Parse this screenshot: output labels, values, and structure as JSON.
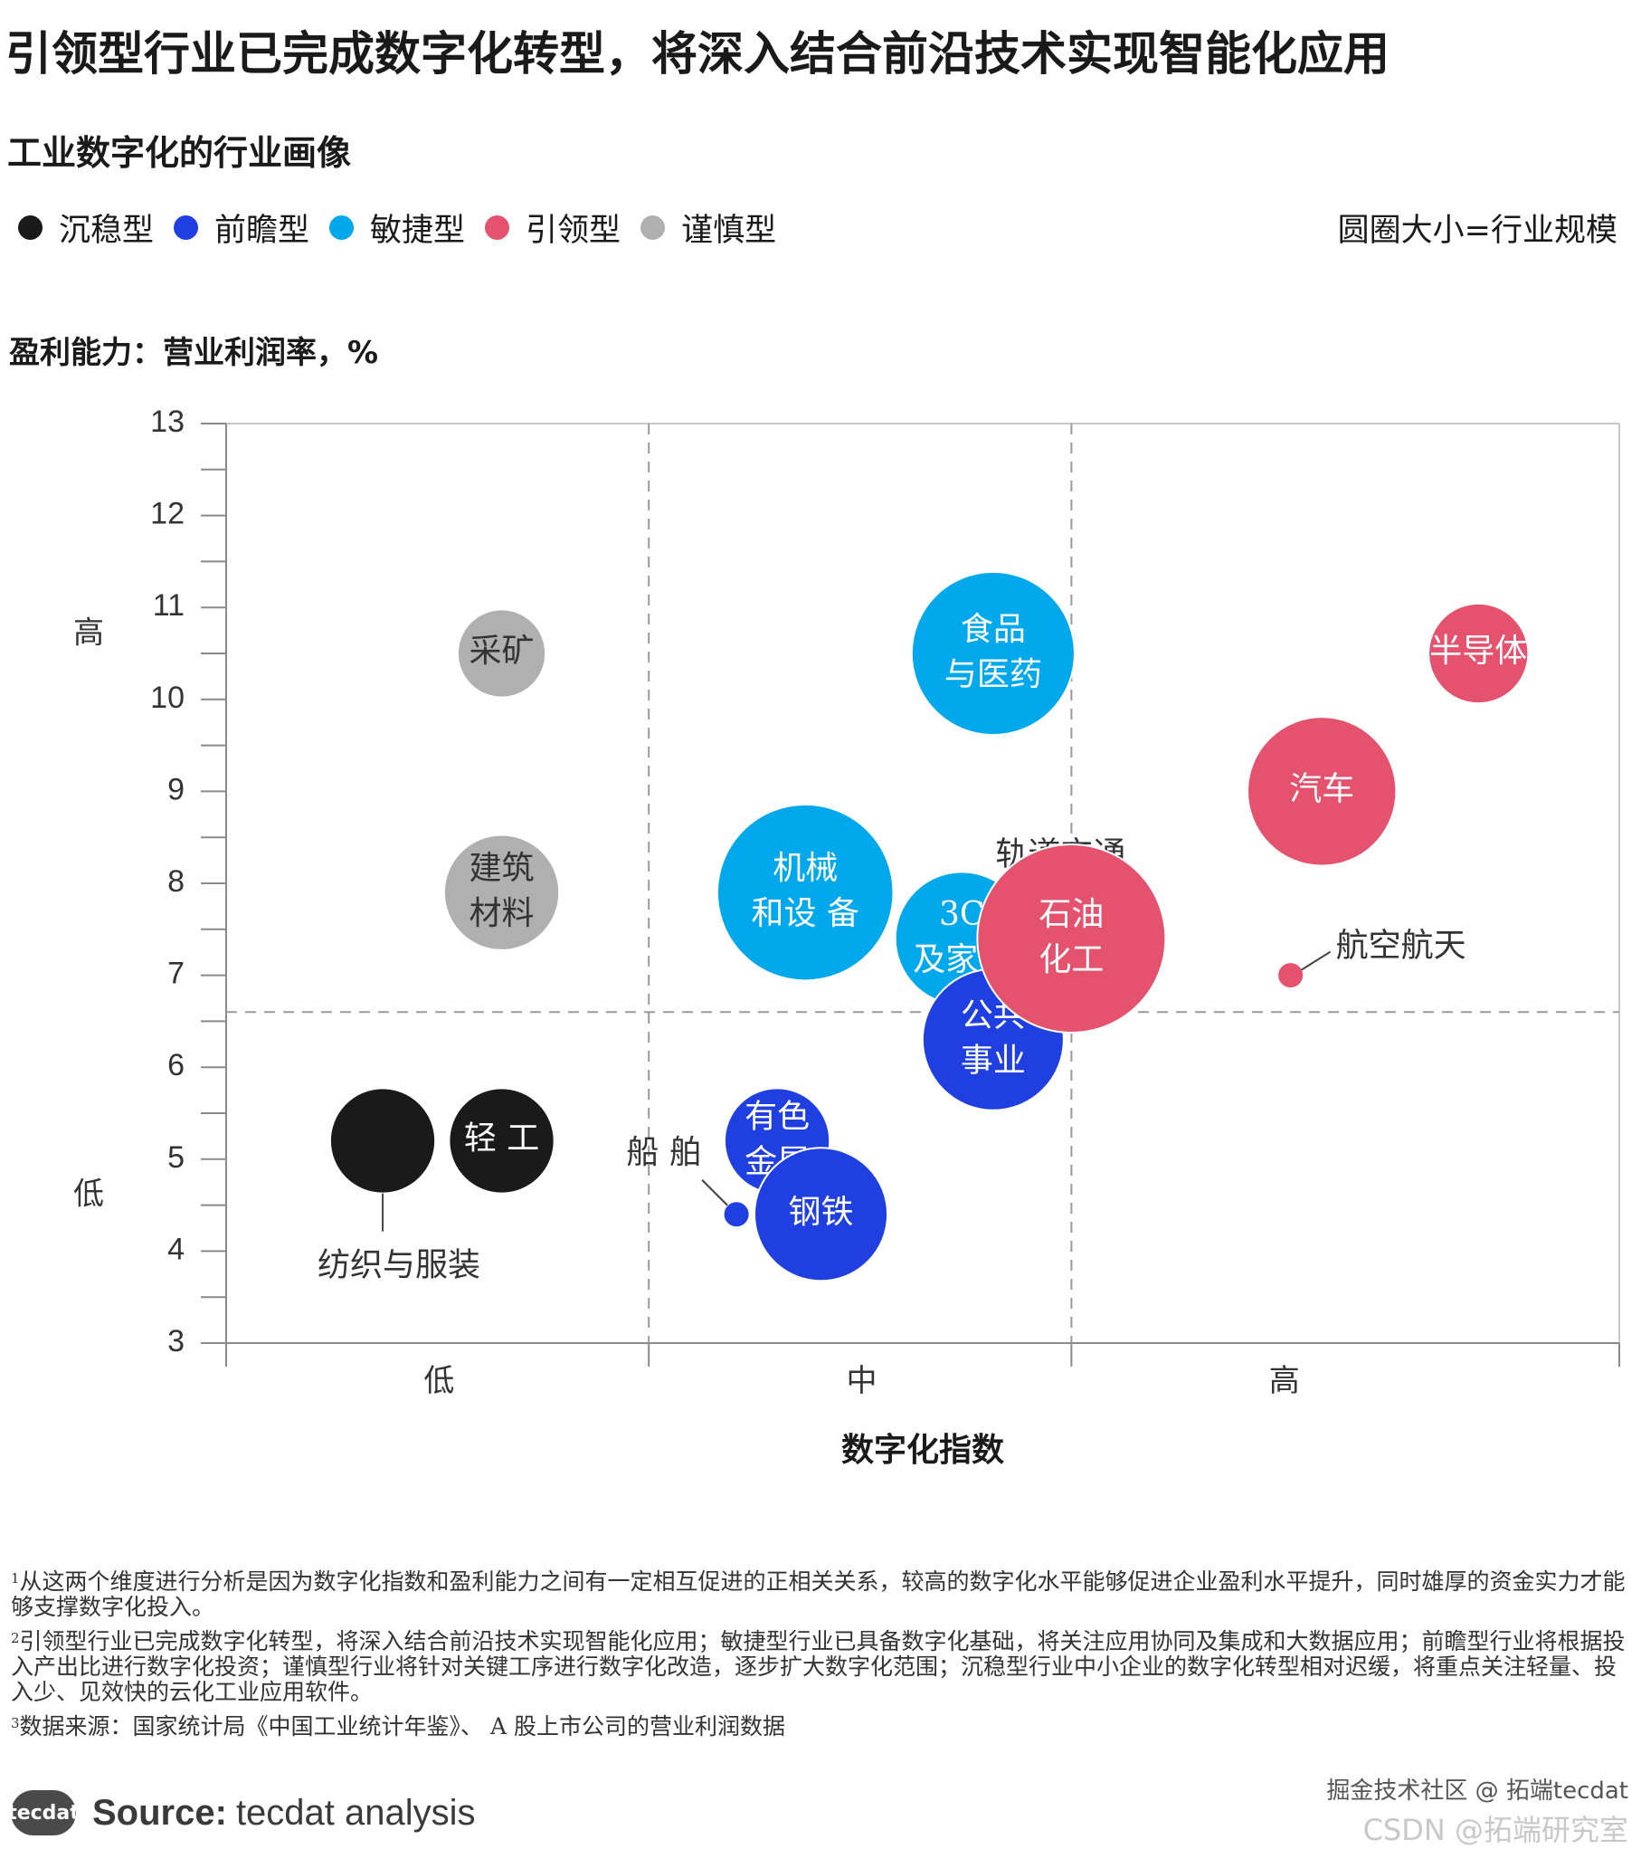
{
  "title": "引领型行业已完成数字化转型，将深入结合前沿技术实现智能化应用",
  "subtitle": "工业数字化的行业画像",
  "legend": [
    {
      "label": "沉稳型",
      "color": "#1a1a1a"
    },
    {
      "label": "前瞻型",
      "color": "#1f3fe0"
    },
    {
      "label": "敏捷型",
      "color": "#02a8ec"
    },
    {
      "label": "引领型",
      "color": "#e5526e"
    },
    {
      "label": "谨慎型",
      "color": "#b0b0b0"
    }
  ],
  "size_note": "圆圈大小=行业规模",
  "y_axis_title": "盈利能力：营业利润率，%",
  "chart_data": {
    "type": "scatter",
    "xlabel": "数字化指数",
    "x_categories": [
      "低",
      "中",
      "高"
    ],
    "y_level_labels": {
      "high": "高",
      "low": "低"
    },
    "ylim": [
      3,
      13
    ],
    "yticks": [
      3,
      4,
      5,
      6,
      7,
      8,
      9,
      10,
      11,
      12,
      13
    ],
    "quadrant_divider_y": 6.6,
    "bubbles": [
      {
        "name": "纺织与服装",
        "type": "沉稳型",
        "x": 1.0,
        "y": 5.2,
        "size": 5
      },
      {
        "name": "轻 工",
        "type": "沉稳型",
        "x": 1.38,
        "y": 5.2,
        "size": 5
      },
      {
        "name": "采矿",
        "type": "谨慎型",
        "x": 1.38,
        "y": 10.5,
        "size": 3.5
      },
      {
        "name": "建筑\n材料",
        "type": "谨慎型",
        "x": 1.38,
        "y": 7.9,
        "size": 6
      },
      {
        "name": "食品\n与医药",
        "type": "敏捷型",
        "x": 2.95,
        "y": 10.5,
        "size": 12
      },
      {
        "name": "机械\n和设 备",
        "type": "敏捷型",
        "x": 2.35,
        "y": 7.9,
        "size": 14
      },
      {
        "name": "3C\n及家电",
        "type": "敏捷型",
        "x": 2.85,
        "y": 7.4,
        "size": 8
      },
      {
        "name": "轨道交通",
        "type": "敏捷型",
        "x": 3.44,
        "y": 7.6,
        "size": 0.4
      },
      {
        "name": "船 舶",
        "type": "前瞻型",
        "x": 2.13,
        "y": 4.4,
        "size": 0.4
      },
      {
        "name": "有色\n金属",
        "type": "前瞻型",
        "x": 2.26,
        "y": 5.2,
        "size": 5
      },
      {
        "name": "钢铁",
        "type": "前瞻型",
        "x": 2.4,
        "y": 4.4,
        "size": 8
      },
      {
        "name": "公共\n事业",
        "type": "前瞻型",
        "x": 2.95,
        "y": 6.3,
        "size": 9
      },
      {
        "name": "石油\n化工",
        "type": "引领型",
        "x": 3.2,
        "y": 7.4,
        "size": 16
      },
      {
        "name": "航空航天",
        "type": "引领型",
        "x": 3.9,
        "y": 7.0,
        "size": 0.4
      },
      {
        "name": "汽车",
        "type": "引领型",
        "x": 4.0,
        "y": 9.0,
        "size": 10
      },
      {
        "name": "半导体",
        "type": "引领型",
        "x": 4.5,
        "y": 10.5,
        "size": 4.5
      }
    ]
  },
  "footnotes": [
    {
      "num": "1",
      "text": "从这两个维度进行分析是因为数字化指数和盈利能力之间有一定相互促进的正相关关系，较高的数字化水平能够促进企业盈利水平提升，同时雄厚的资金实力才能够支撑数字化投入。"
    },
    {
      "num": "2",
      "text": "引领型行业已完成数字化转型，将深入结合前沿技术实现智能化应用；敏捷型行业已具备数字化基础，将关注应用协同及集成和大数据应用；前瞻型行业将根据投入产出比进行数字化投资；谨慎型行业将针对关键工序进行数字化改造，逐步扩大数字化范围；沉稳型行业中小企业的数字化转型相对迟缓，将重点关注轻量、投入少、见效快的云化工业应用软件。"
    },
    {
      "num": "3",
      "text": "数据来源：国家统计局《中国工业统计年鉴》、 A 股上市公司的营业利润数据"
    }
  ],
  "brand": {
    "logo": "tecdat",
    "source_bold": "Source:",
    "source_text": "tecdat analysis"
  },
  "watermark": {
    "line1": "掘金技术社区 @ 拓端tecdat",
    "line2": "CSDN @拓端研究室"
  }
}
